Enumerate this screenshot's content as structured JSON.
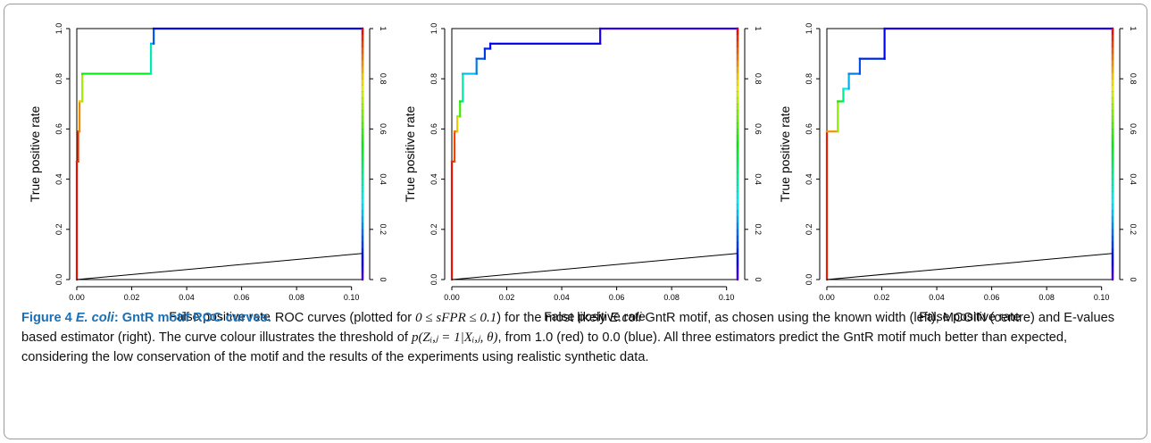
{
  "figure": {
    "caption": {
      "label": "Figure 4",
      "title_italic": "E. coli",
      "title_rest": ": GntR motif ROC curves.",
      "text_1": " ROC curves (plotted for ",
      "formula_1": "0 ≤ sFPR ≤ 0.1",
      "text_2": ") for the most likely ",
      "organism": "E.coli",
      "text_3": " GntR motif, as chosen using the known width (left), MCOIN (centre) and E-values based estimator (right). The curve colour illustrates the threshold of ",
      "formula_2": "p(Zᵢ,ⱼ = 1|Xᵢ,ⱼ, θ)",
      "text_4": ", from 1.0 (red) to 0.0 (blue). All three estimators predict the GntR motif much better than expected, considering the low conservation of the motif and the results of the experiments using realistic synthetic data."
    }
  },
  "chart_data": [
    {
      "type": "line",
      "panel": "left",
      "xlabel": "False positive rate",
      "ylabel": "True positive rate",
      "xlim": [
        0,
        0.104
      ],
      "ylim": [
        0,
        1
      ],
      "x_ticks": [
        "0.00",
        "0.02",
        "0.04",
        "0.06",
        "0.08",
        "0.10"
      ],
      "y_ticks": [
        "0.0",
        "0.2",
        "0.4",
        "0.6",
        "0.8",
        "1.0"
      ],
      "right_axis_ticks": [
        "0",
        "0.2",
        "0.4",
        "0.6",
        "0.8",
        "1"
      ],
      "color_scale": "threshold from 1.0 (red) to 0.0 (blue)",
      "series": [
        {
          "x": [
            0.0,
            0.0,
            0.0005,
            0.0005,
            0.001,
            0.001,
            0.002,
            0.002,
            0.027,
            0.027,
            0.028,
            0.028,
            0.104,
            0.104
          ],
          "y": [
            0.0,
            0.47,
            0.47,
            0.59,
            0.59,
            0.71,
            0.71,
            0.82,
            0.82,
            0.94,
            0.94,
            1.0,
            1.0,
            0.0
          ],
          "threshold": [
            1.0,
            0.98,
            0.96,
            0.94,
            0.9,
            0.82,
            0.78,
            0.62,
            0.42,
            0.3,
            0.2,
            0.12,
            0.05,
            0.0
          ]
        },
        {
          "x": [
            0.0,
            0.104
          ],
          "y": [
            0.0,
            0.104
          ],
          "color": "#000000"
        }
      ]
    },
    {
      "type": "line",
      "panel": "centre",
      "xlabel": "False positive rate",
      "ylabel": "True positive rate",
      "xlim": [
        0,
        0.104
      ],
      "ylim": [
        0,
        1
      ],
      "x_ticks": [
        "0.00",
        "0.02",
        "0.04",
        "0.06",
        "0.08",
        "0.10"
      ],
      "y_ticks": [
        "0.0",
        "0.2",
        "0.4",
        "0.6",
        "0.8",
        "1.0"
      ],
      "right_axis_ticks": [
        "0",
        "0.2",
        "0.4",
        "0.6",
        "0.8",
        "1"
      ],
      "color_scale": "threshold from 1.0 (red) to 0.0 (blue)",
      "series": [
        {
          "x": [
            0.0,
            0.0,
            0.001,
            0.001,
            0.002,
            0.002,
            0.003,
            0.003,
            0.004,
            0.004,
            0.009,
            0.009,
            0.012,
            0.012,
            0.014,
            0.014,
            0.054,
            0.054,
            0.104,
            0.104
          ],
          "y": [
            0.0,
            0.47,
            0.47,
            0.59,
            0.59,
            0.65,
            0.65,
            0.71,
            0.71,
            0.82,
            0.82,
            0.88,
            0.88,
            0.92,
            0.92,
            0.94,
            0.94,
            1.0,
            1.0,
            0.0
          ],
          "threshold": [
            1.0,
            0.97,
            0.95,
            0.9,
            0.85,
            0.75,
            0.65,
            0.55,
            0.45,
            0.3,
            0.22,
            0.18,
            0.15,
            0.12,
            0.1,
            0.08,
            0.06,
            0.04,
            0.02,
            0.0
          ]
        },
        {
          "x": [
            0.0,
            0.104
          ],
          "y": [
            0.0,
            0.104
          ],
          "color": "#000000"
        }
      ]
    },
    {
      "type": "line",
      "panel": "right",
      "xlabel": "False positive rate",
      "ylabel": "True positive rate",
      "xlim": [
        0,
        0.104
      ],
      "ylim": [
        0,
        1
      ],
      "x_ticks": [
        "0.00",
        "0.02",
        "0.04",
        "0.06",
        "0.08",
        "0.10"
      ],
      "y_ticks": [
        "0.0",
        "0.2",
        "0.4",
        "0.6",
        "0.8",
        "1.0"
      ],
      "right_axis_ticks": [
        "0",
        "0.2",
        "0.4",
        "0.6",
        "0.8",
        "1"
      ],
      "color_scale": "threshold from 1.0 (red) to 0.0 (blue)",
      "series": [
        {
          "x": [
            0.0,
            0.0,
            0.004,
            0.004,
            0.006,
            0.006,
            0.008,
            0.008,
            0.012,
            0.012,
            0.021,
            0.021,
            0.104,
            0.104
          ],
          "y": [
            0.0,
            0.59,
            0.59,
            0.71,
            0.71,
            0.76,
            0.76,
            0.82,
            0.82,
            0.88,
            0.88,
            1.0,
            1.0,
            0.0
          ],
          "threshold": [
            1.0,
            0.95,
            0.75,
            0.6,
            0.45,
            0.35,
            0.28,
            0.22,
            0.18,
            0.14,
            0.1,
            0.06,
            0.03,
            0.0
          ]
        },
        {
          "x": [
            0.0,
            0.104
          ],
          "y": [
            0.0,
            0.104
          ],
          "color": "#000000"
        }
      ]
    }
  ]
}
